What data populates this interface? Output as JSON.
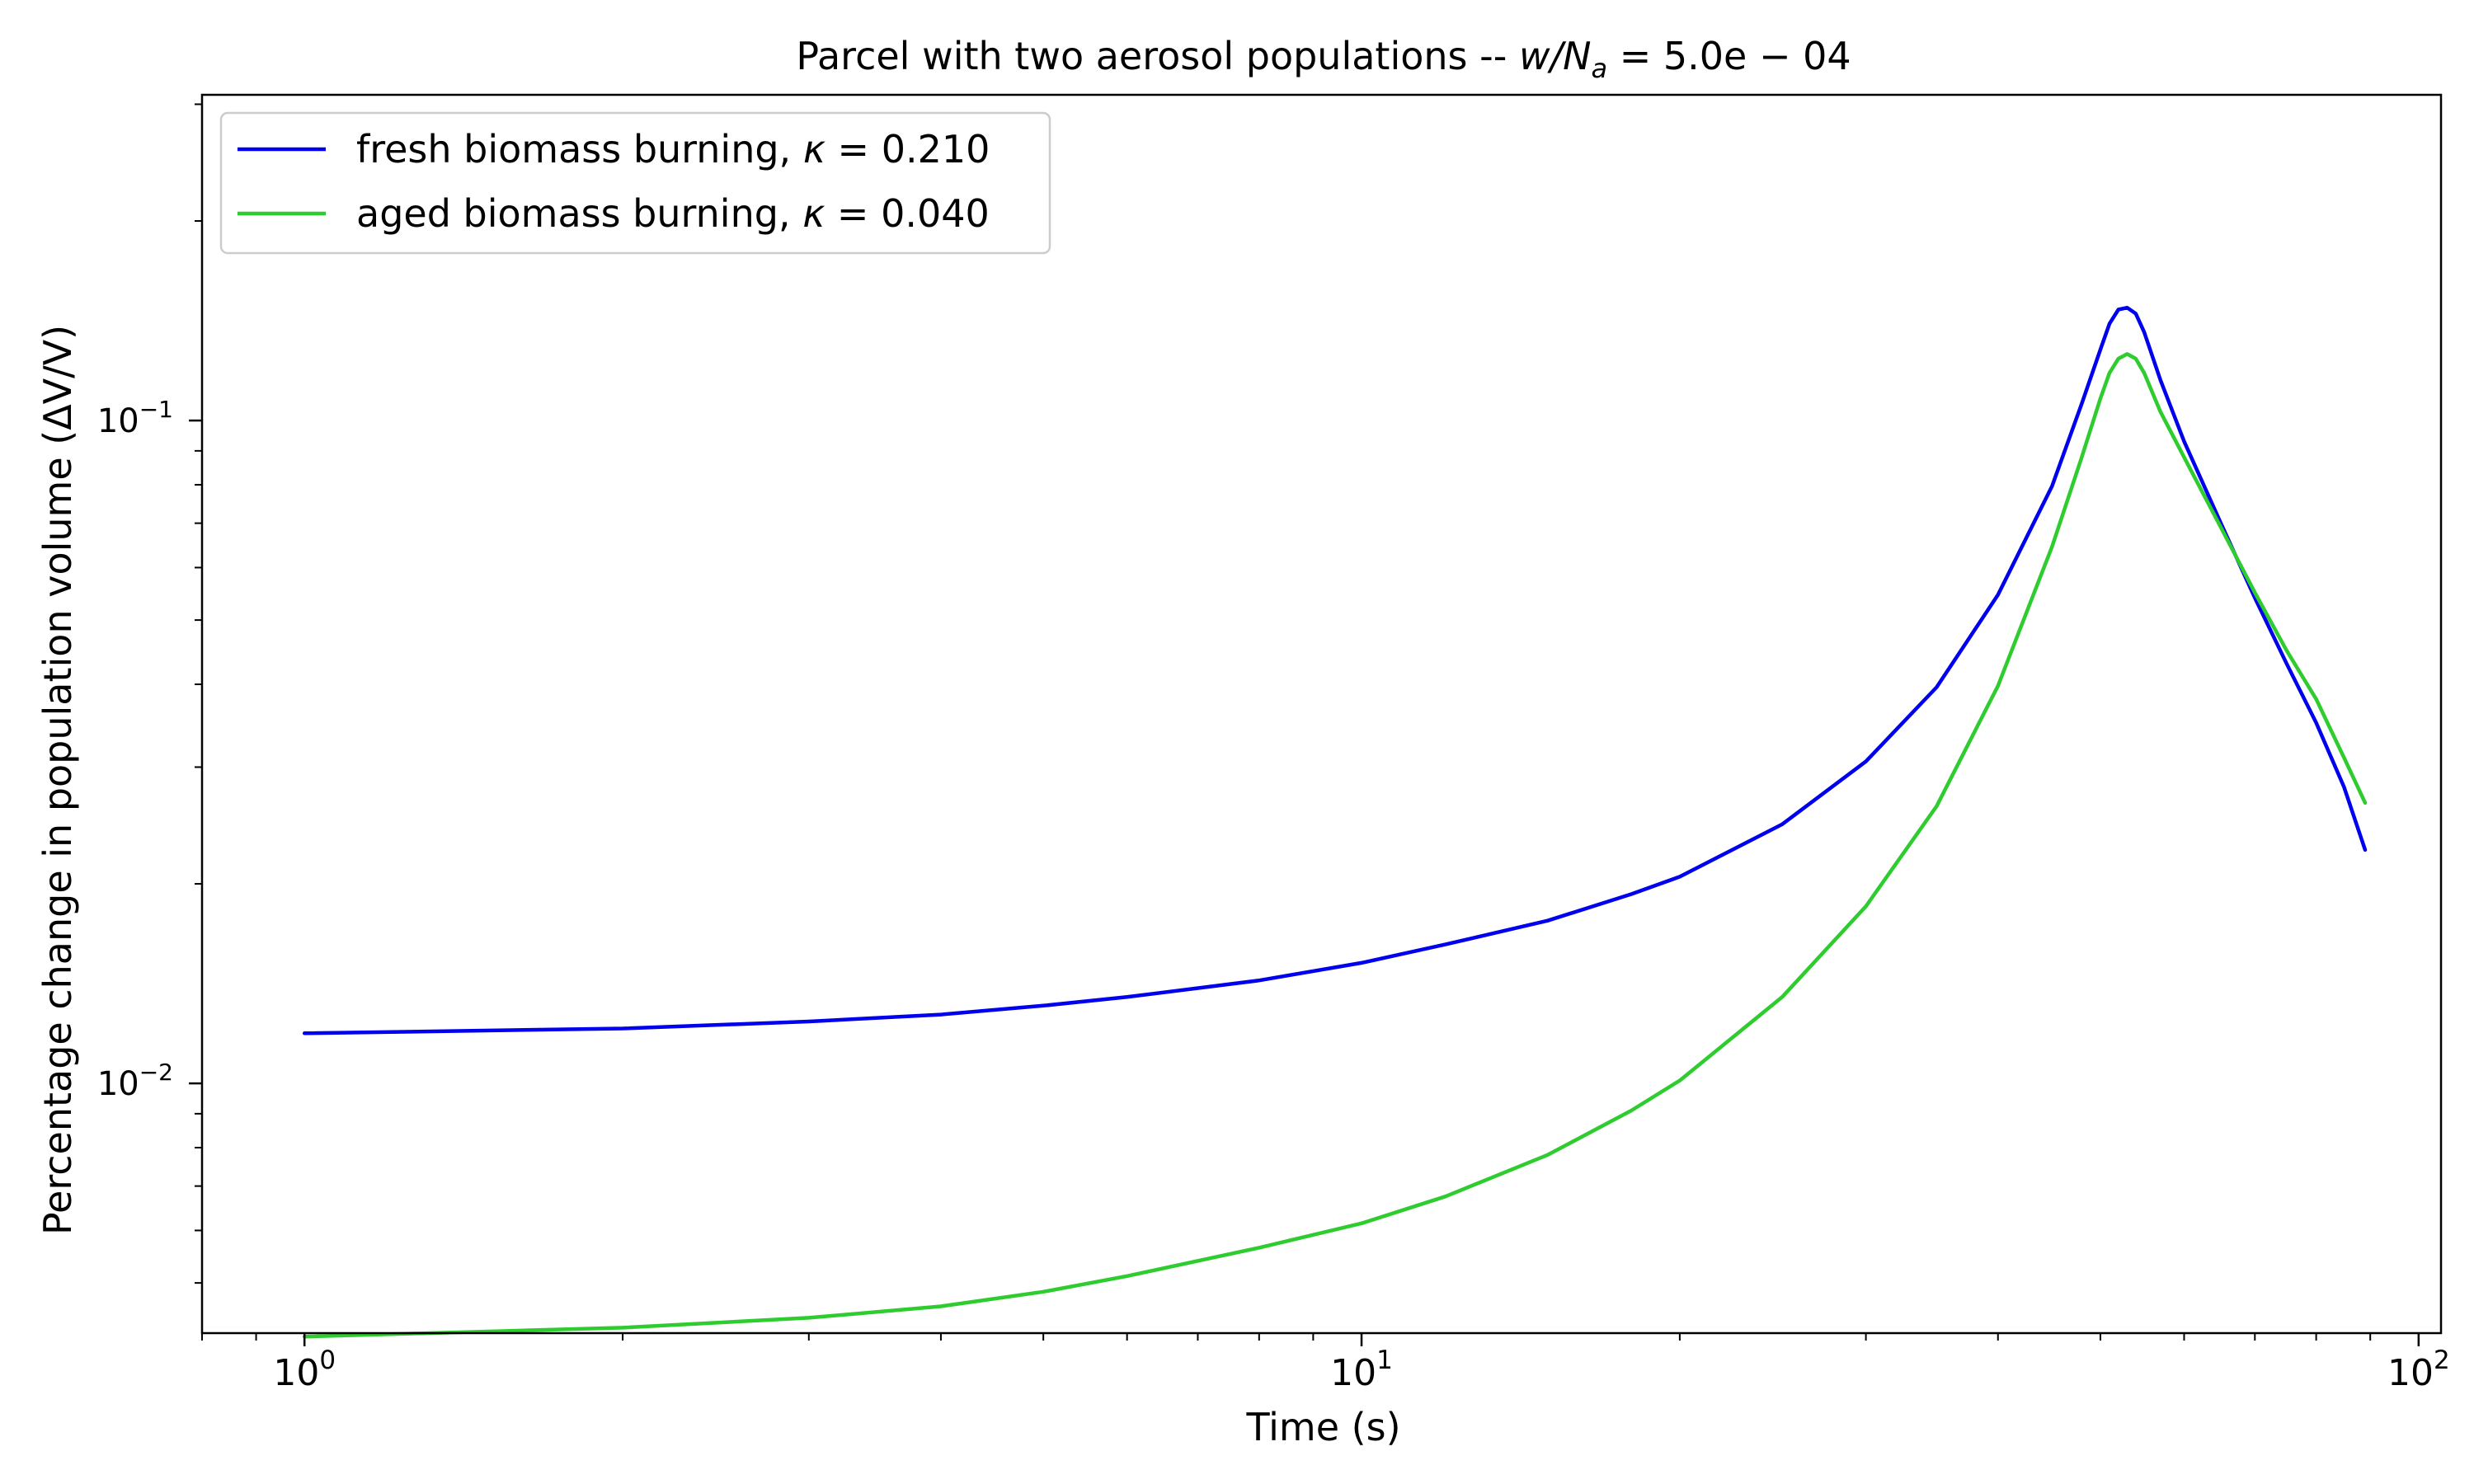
{
  "chart_data": {
    "type": "line",
    "title": {
      "text": "Parcel with two aerosol populations -- ",
      "math_var": "w/N",
      "math_sub": "a",
      "math_rest": " = 5.0e − 04"
    },
    "xlabel": "Time (s)",
    "ylabel": "Percentage change in population volume (ΔV/V)",
    "xscale": "log",
    "yscale": "log",
    "xlim": [
      0.8,
      105
    ],
    "ylim": [
      0.0042,
      0.31
    ],
    "x_ticks": [
      {
        "value": 1,
        "base": "10",
        "exp": "0"
      },
      {
        "value": 10,
        "base": "10",
        "exp": "1"
      },
      {
        "value": 100,
        "base": "10",
        "exp": "2"
      }
    ],
    "y_ticks": [
      {
        "value": 0.01,
        "base": "10",
        "exp": "−2"
      },
      {
        "value": 0.1,
        "base": "10",
        "exp": "−1"
      }
    ],
    "grid": false,
    "legend_position": "top-left",
    "series": [
      {
        "name_prefix": "fresh biomass burning, ",
        "name_kappa": "κ",
        "name_value": " = 0.210",
        "color": "#0000ee",
        "x": [
          1,
          2,
          3,
          4,
          5,
          6,
          8,
          10,
          12,
          15,
          18,
          20,
          25,
          30,
          35,
          40,
          45,
          48,
          50,
          51,
          52,
          53,
          54,
          55,
          57,
          60,
          65,
          70,
          75,
          80,
          85,
          89
        ],
        "y": [
          0.0119,
          0.0121,
          0.0124,
          0.0127,
          0.0131,
          0.0135,
          0.0143,
          0.0152,
          0.0162,
          0.0176,
          0.0193,
          0.0205,
          0.0246,
          0.0306,
          0.0396,
          0.0546,
          0.0796,
          0.106,
          0.128,
          0.14,
          0.147,
          0.148,
          0.145,
          0.136,
          0.115,
          0.093,
          0.07,
          0.054,
          0.043,
          0.035,
          0.028,
          0.0225
        ]
      },
      {
        "name_prefix": "aged biomass burning, ",
        "name_kappa": "κ",
        "name_value": " = 0.040",
        "color": "#2ecc2e",
        "x": [
          1,
          2,
          3,
          4,
          5,
          6,
          8,
          10,
          12,
          15,
          18,
          20,
          25,
          30,
          35,
          40,
          45,
          48,
          50,
          51,
          52,
          53,
          54,
          55,
          57,
          60,
          65,
          70,
          75,
          80,
          85,
          89
        ],
        "y": [
          0.00415,
          0.00428,
          0.00443,
          0.00461,
          0.00485,
          0.00512,
          0.00565,
          0.00615,
          0.00675,
          0.0078,
          0.0091,
          0.0101,
          0.0135,
          0.0185,
          0.0262,
          0.0398,
          0.0645,
          0.088,
          0.108,
          0.118,
          0.124,
          0.126,
          0.124,
          0.118,
          0.103,
          0.088,
          0.069,
          0.055,
          0.045,
          0.038,
          0.031,
          0.0265
        ]
      }
    ]
  }
}
